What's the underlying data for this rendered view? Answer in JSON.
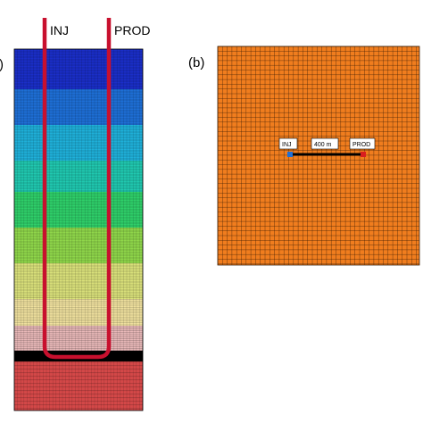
{
  "panel_a": {
    "label": ")",
    "wells": {
      "injector": "INJ",
      "producer": "PROD"
    },
    "colors": {
      "well": "#c8102e",
      "layers": [
        "#1a2ec8",
        "#1e6fd6",
        "#1fb0d9",
        "#20c8b0",
        "#2fcf6a",
        "#8fd64a",
        "#d9e07a",
        "#f2e3a0",
        "#e8b8b8"
      ],
      "deep": "#d34848",
      "band": "#000000",
      "grid_line": "#000000"
    }
  },
  "panel_b": {
    "label": "(b)",
    "injector_label": "INJ",
    "producer_label": "PROD",
    "distance_label": "400 m",
    "colors": {
      "fill": "#f07d1e",
      "grid_line": "#3a1d05",
      "injector_marker": "#1f6fd6",
      "producer_marker": "#d91e1e",
      "connector": "#000000"
    }
  }
}
